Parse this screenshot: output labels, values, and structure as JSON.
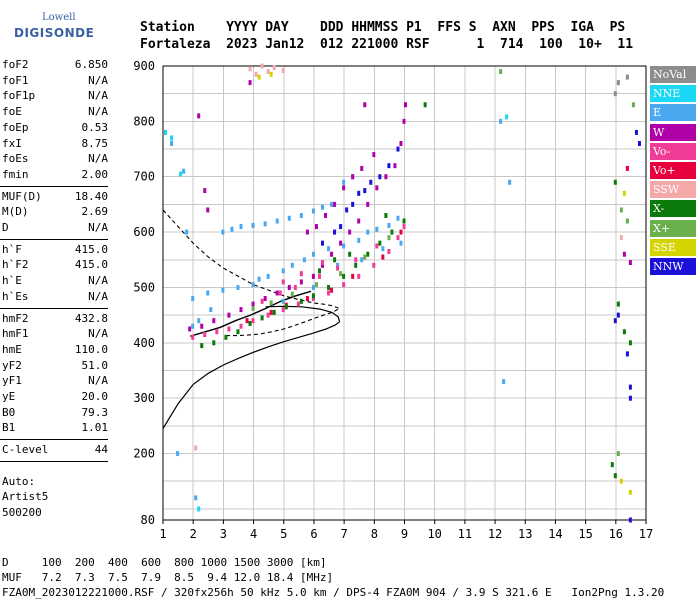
{
  "logo": {
    "line1": "Lowell",
    "line2": "DIGISONDE"
  },
  "header": {
    "line1": "Station    YYYY DAY    DDD HHMMSS P1  FFS S  AXN  PPS  IGA  PS",
    "line2": "Fortaleza  2023 Jan12  012 221000 RSF      1  714  100  10+  11"
  },
  "params": {
    "group1": [
      {
        "k": "foF2",
        "v": "6.850"
      },
      {
        "k": "foF1",
        "v": "N/A"
      },
      {
        "k": "foF1p",
        "v": "N/A"
      },
      {
        "k": "foE",
        "v": "N/A"
      },
      {
        "k": "foEp",
        "v": "0.53"
      },
      {
        "k": "fxI",
        "v": "8.75"
      },
      {
        "k": "foEs",
        "v": "N/A"
      },
      {
        "k": "fmin",
        "v": "2.00"
      }
    ],
    "group2": [
      {
        "k": "MUF(D)",
        "v": "18.40"
      },
      {
        "k": "M(D)",
        "v": "2.69"
      },
      {
        "k": "D",
        "v": "N/A"
      }
    ],
    "group3": [
      {
        "k": "h`F",
        "v": "415.0"
      },
      {
        "k": "h`F2",
        "v": "415.0"
      },
      {
        "k": "h`E",
        "v": "N/A"
      },
      {
        "k": "h`Es",
        "v": "N/A"
      }
    ],
    "group4": [
      {
        "k": "hmF2",
        "v": "432.8"
      },
      {
        "k": "hmF1",
        "v": "N/A"
      },
      {
        "k": "hmE",
        "v": "110.0"
      },
      {
        "k": "yF2",
        "v": "51.0"
      },
      {
        "k": "yF1",
        "v": "N/A"
      },
      {
        "k": "yE",
        "v": "20.0"
      },
      {
        "k": "B0",
        "v": "79.3"
      },
      {
        "k": "B1",
        "v": "1.01"
      }
    ],
    "group5": [
      {
        "k": "C-level",
        "v": "44"
      }
    ],
    "auto": [
      "Auto:",
      "Artist5",
      "500200"
    ]
  },
  "legend": [
    {
      "label": "NoVal",
      "color": "#8c8c8c",
      "text": "#ffffff"
    },
    {
      "label": "NNE",
      "color": "#19d7f5",
      "text": "#ffffff"
    },
    {
      "label": "E",
      "color": "#4aa8f0",
      "text": "#ffffff"
    },
    {
      "label": "W",
      "color": "#b000a8",
      "text": "#ffffff"
    },
    {
      "label": "Vo-",
      "color": "#f03c96",
      "text": "#ffffff"
    },
    {
      "label": "Vo+",
      "color": "#e8003c",
      "text": "#ffffff"
    },
    {
      "label": "SSW",
      "color": "#f4a8a8",
      "text": "#ffffff"
    },
    {
      "label": "X-",
      "color": "#0a7a0a",
      "text": "#ffffff"
    },
    {
      "label": "X+",
      "color": "#6ab04c",
      "text": "#ffffff"
    },
    {
      "label": "SSE",
      "color": "#d4d400",
      "text": "#ffffff"
    },
    {
      "label": "NNW",
      "color": "#1a10d8",
      "text": "#ffffff"
    }
  ],
  "footer": {
    "line1": "D     100  200  400  600  800 1000 1500 3000 [km]",
    "line2": "MUF   7.2  7.3  7.5  7.9  8.5  9.4 12.0 18.4 [MHz]",
    "line3": "FZA0M_2023012221000.RSF / 320fx256h 50 kHz 5.0 km / DPS-4 FZA0M 904 / 3.9 S 321.6 E   Ion2Png 1.3.20"
  },
  "chart_data": {
    "type": "scatter",
    "title": "",
    "xlabel": "",
    "ylabel": "",
    "xlim": [
      1,
      17
    ],
    "ylim": [
      80,
      900
    ],
    "x_ticks": [
      "1",
      "2",
      "3",
      "4",
      "5",
      "6",
      "7",
      "8",
      "9",
      "10",
      "11",
      "12",
      "13",
      "14",
      "15",
      "16",
      "17"
    ],
    "y_ticks": [
      "80",
      "200",
      "300",
      "400",
      "500",
      "600",
      "700",
      "800",
      "900"
    ],
    "grid": true,
    "legend_position": "right",
    "series": [
      {
        "name": "E",
        "color": "#4aa8f0",
        "points": [
          [
            2.0,
            480
          ],
          [
            2.5,
            490
          ],
          [
            3.0,
            495
          ],
          [
            3.5,
            500
          ],
          [
            4.0,
            505
          ],
          [
            4.2,
            515
          ],
          [
            4.5,
            520
          ],
          [
            5.0,
            530
          ],
          [
            5.3,
            540
          ],
          [
            5.7,
            550
          ],
          [
            6.0,
            560
          ],
          [
            6.5,
            570
          ],
          [
            7.0,
            575
          ],
          [
            7.5,
            585
          ],
          [
            7.8,
            600
          ],
          [
            8.1,
            605
          ],
          [
            8.5,
            612
          ],
          [
            8.8,
            625
          ],
          [
            3.0,
            600
          ],
          [
            3.3,
            605
          ],
          [
            3.6,
            610
          ],
          [
            4.0,
            612
          ],
          [
            4.4,
            615
          ],
          [
            4.8,
            620
          ],
          [
            5.2,
            625
          ],
          [
            5.6,
            630
          ],
          [
            6.0,
            638
          ],
          [
            6.3,
            645
          ],
          [
            6.6,
            650
          ],
          [
            7.0,
            690
          ],
          [
            7.3,
            700
          ],
          [
            1.1,
            780
          ],
          [
            1.3,
            760
          ],
          [
            1.7,
            710
          ],
          [
            1.8,
            600
          ],
          [
            2.0,
            430
          ],
          [
            2.2,
            440
          ],
          [
            2.6,
            460
          ],
          [
            5.0,
            475
          ],
          [
            6.0,
            500
          ],
          [
            6.8,
            540
          ],
          [
            7.6,
            550
          ],
          [
            8.3,
            570
          ],
          [
            8.9,
            580
          ],
          [
            12.2,
            800
          ],
          [
            12.5,
            690
          ],
          [
            12.3,
            330
          ],
          [
            1.5,
            200
          ],
          [
            2.1,
            120
          ]
        ]
      },
      {
        "name": "W",
        "color": "#b000a8",
        "points": [
          [
            1.9,
            425
          ],
          [
            2.3,
            430
          ],
          [
            2.7,
            440
          ],
          [
            3.2,
            450
          ],
          [
            3.6,
            460
          ],
          [
            4.0,
            470
          ],
          [
            4.4,
            480
          ],
          [
            4.8,
            490
          ],
          [
            5.2,
            500
          ],
          [
            5.6,
            510
          ],
          [
            6.0,
            520
          ],
          [
            6.3,
            540
          ],
          [
            6.6,
            560
          ],
          [
            6.9,
            580
          ],
          [
            7.2,
            600
          ],
          [
            7.5,
            620
          ],
          [
            7.8,
            650
          ],
          [
            8.1,
            680
          ],
          [
            8.4,
            700
          ],
          [
            8.7,
            720
          ],
          [
            8.9,
            760
          ],
          [
            9.0,
            800
          ],
          [
            9.05,
            830
          ],
          [
            5.8,
            600
          ],
          [
            6.1,
            610
          ],
          [
            6.4,
            630
          ],
          [
            6.7,
            650
          ],
          [
            7.0,
            680
          ],
          [
            7.3,
            700
          ],
          [
            7.6,
            715
          ],
          [
            8.0,
            740
          ],
          [
            2.5,
            640
          ],
          [
            2.4,
            675
          ],
          [
            3.9,
            870
          ],
          [
            2.2,
            810
          ],
          [
            16.3,
            560
          ],
          [
            16.5,
            545
          ],
          [
            7.7,
            830
          ]
        ]
      },
      {
        "name": "Vo-",
        "color": "#f03c96",
        "points": [
          [
            2.0,
            410
          ],
          [
            2.4,
            415
          ],
          [
            2.8,
            420
          ],
          [
            3.2,
            425
          ],
          [
            3.6,
            430
          ],
          [
            4.0,
            440
          ],
          [
            4.5,
            450
          ],
          [
            5.0,
            460
          ],
          [
            5.5,
            470
          ],
          [
            6.0,
            480
          ],
          [
            6.5,
            490
          ],
          [
            7.0,
            505
          ],
          [
            7.5,
            520
          ],
          [
            8.0,
            540
          ],
          [
            8.5,
            565
          ],
          [
            8.8,
            590
          ],
          [
            9.0,
            610
          ],
          [
            4.3,
            475
          ],
          [
            4.9,
            490
          ],
          [
            5.4,
            500
          ],
          [
            6.2,
            520
          ],
          [
            6.8,
            535
          ],
          [
            7.4,
            550
          ],
          [
            8.1,
            575
          ],
          [
            5.0,
            510
          ],
          [
            5.6,
            525
          ],
          [
            6.3,
            545
          ]
        ]
      },
      {
        "name": "Vo+",
        "color": "#e8003c",
        "points": [
          [
            4.6,
            455
          ],
          [
            5.1,
            468
          ],
          [
            5.8,
            480
          ],
          [
            6.6,
            495
          ],
          [
            7.3,
            520
          ],
          [
            8.3,
            555
          ],
          [
            8.9,
            600
          ],
          [
            3.8,
            440
          ],
          [
            16.4,
            715
          ]
        ]
      },
      {
        "name": "SSW",
        "color": "#f4a8a8",
        "points": [
          [
            3.9,
            895
          ],
          [
            4.1,
            885
          ],
          [
            4.3,
            900
          ],
          [
            4.5,
            890
          ],
          [
            4.7,
            897
          ],
          [
            5.0,
            892
          ],
          [
            2.1,
            210
          ],
          [
            16.2,
            590
          ]
        ]
      },
      {
        "name": "X-",
        "color": "#0a7a0a",
        "points": [
          [
            2.3,
            395
          ],
          [
            2.7,
            400
          ],
          [
            3.1,
            410
          ],
          [
            3.5,
            420
          ],
          [
            3.9,
            435
          ],
          [
            4.3,
            445
          ],
          [
            4.7,
            455
          ],
          [
            5.1,
            465
          ],
          [
            5.6,
            475
          ],
          [
            6.0,
            485
          ],
          [
            6.5,
            500
          ],
          [
            7.0,
            520
          ],
          [
            7.4,
            540
          ],
          [
            7.8,
            560
          ],
          [
            8.2,
            580
          ],
          [
            8.6,
            600
          ],
          [
            9.0,
            620
          ],
          [
            6.2,
            530
          ],
          [
            6.7,
            550
          ],
          [
            7.2,
            560
          ],
          [
            16.0,
            690
          ],
          [
            16.1,
            470
          ],
          [
            16.3,
            420
          ],
          [
            16.5,
            400
          ],
          [
            15.9,
            180
          ],
          [
            16.0,
            160
          ],
          [
            8.4,
            630
          ],
          [
            9.7,
            830
          ]
        ]
      },
      {
        "name": "X+",
        "color": "#6ab04c",
        "points": [
          [
            4.0,
            462
          ],
          [
            4.6,
            472
          ],
          [
            5.3,
            488
          ],
          [
            6.1,
            505
          ],
          [
            6.9,
            525
          ],
          [
            7.7,
            555
          ],
          [
            8.5,
            590
          ],
          [
            16.2,
            640
          ],
          [
            16.4,
            620
          ],
          [
            16.1,
            200
          ],
          [
            12.2,
            890
          ],
          [
            16.6,
            830
          ]
        ]
      },
      {
        "name": "SSE",
        "color": "#d4d400",
        "points": [
          [
            4.2,
            880
          ],
          [
            4.6,
            885
          ],
          [
            16.3,
            670
          ],
          [
            16.5,
            130
          ],
          [
            16.2,
            150
          ]
        ]
      },
      {
        "name": "NNW",
        "color": "#1a10d8",
        "points": [
          [
            6.3,
            580
          ],
          [
            6.7,
            600
          ],
          [
            7.1,
            640
          ],
          [
            7.5,
            670
          ],
          [
            7.9,
            690
          ],
          [
            8.2,
            700
          ],
          [
            8.5,
            720
          ],
          [
            8.8,
            750
          ],
          [
            6.9,
            610
          ],
          [
            7.3,
            650
          ],
          [
            7.7,
            675
          ],
          [
            16.5,
            320
          ],
          [
            16.5,
            300
          ],
          [
            16.8,
            760
          ],
          [
            16.7,
            780
          ],
          [
            16.1,
            450
          ],
          [
            16.0,
            440
          ],
          [
            16.4,
            380
          ],
          [
            16.5,
            80
          ]
        ]
      },
      {
        "name": "NNE",
        "color": "#19d7f5",
        "points": [
          [
            1.1,
            780
          ],
          [
            1.3,
            770
          ],
          [
            1.6,
            705
          ],
          [
            12.4,
            808
          ],
          [
            2.2,
            100
          ]
        ]
      },
      {
        "name": "NoVal",
        "color": "#8c8c8c",
        "points": [
          [
            16.0,
            850
          ],
          [
            16.4,
            880
          ],
          [
            16.1,
            870
          ]
        ]
      }
    ],
    "curves": {
      "dashed": [
        [
          1.0,
          640
        ],
        [
          1.5,
          610
        ],
        [
          2.0,
          580
        ],
        [
          2.5,
          555
        ],
        [
          3.0,
          535
        ],
        [
          3.5,
          520
        ],
        [
          4.0,
          505
        ],
        [
          4.5,
          495
        ],
        [
          5.0,
          485
        ],
        [
          5.5,
          478
        ],
        [
          6.0,
          472
        ],
        [
          6.3,
          470
        ],
        [
          6.6,
          467
        ],
        [
          6.85,
          462
        ],
        [
          6.6,
          455
        ],
        [
          6.2,
          448
        ],
        [
          5.8,
          440
        ],
        [
          5.4,
          432
        ],
        [
          5.0,
          425
        ],
        [
          4.6,
          420
        ],
        [
          4.2,
          416
        ],
        [
          3.8,
          414
        ],
        [
          3.4,
          413
        ],
        [
          3.0,
          413
        ]
      ],
      "solid": [
        [
          1.0,
          245
        ],
        [
          1.5,
          290
        ],
        [
          2.0,
          325
        ],
        [
          2.5,
          345
        ],
        [
          3.0,
          360
        ],
        [
          3.5,
          372
        ],
        [
          4.0,
          383
        ],
        [
          4.5,
          393
        ],
        [
          5.0,
          402
        ],
        [
          5.5,
          410
        ],
        [
          6.0,
          418
        ],
        [
          6.4,
          425
        ],
        [
          6.7,
          432
        ],
        [
          6.85,
          438
        ]
      ],
      "solid_curl": [
        [
          6.85,
          438
        ],
        [
          6.8,
          447
        ],
        [
          6.6,
          455
        ],
        [
          6.2,
          461
        ],
        [
          5.6,
          465
        ],
        [
          5.0,
          466
        ],
        [
          4.4,
          465
        ]
      ],
      "trace_upper": [
        [
          1.9,
          412
        ],
        [
          2.4,
          420
        ],
        [
          2.9,
          428
        ],
        [
          3.4,
          440
        ],
        [
          3.9,
          450
        ],
        [
          4.4,
          462
        ],
        [
          4.9,
          475
        ],
        [
          5.4,
          485
        ],
        [
          5.9,
          493
        ]
      ]
    }
  }
}
